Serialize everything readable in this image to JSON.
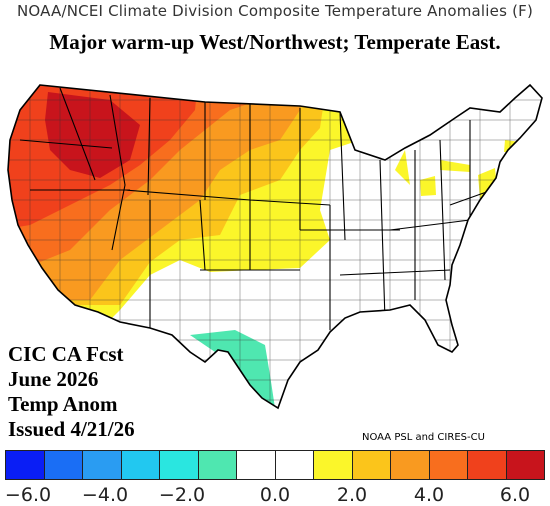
{
  "header": {
    "title": "NOAA/NCEI Climate Division Composite Temperature Anomalies (F)",
    "subtitle": "Major warm-up West/Northwest; Temperate East."
  },
  "forecast_note": {
    "line1": "CIC CA Fcst",
    "line2": "June 2026",
    "line3": "Temp Anom",
    "line4": "Issued 4/21/26"
  },
  "credit": "NOAA PSL and CIRES-CU",
  "colorbar": {
    "colors": [
      "#0a1ef5",
      "#1a6ef5",
      "#2a9cf2",
      "#22c8f0",
      "#2ae6e0",
      "#4fe7b0",
      "#ffffff",
      "#ffffff",
      "#fbf62a",
      "#fbc51b",
      "#f99a20",
      "#f86e1e",
      "#f0411c",
      "#c8141c"
    ],
    "ticks": [
      "−6.0",
      "−4.0",
      "−2.0",
      "0.0",
      "2.0",
      "4.0",
      "6.0"
    ]
  },
  "map_legend": {
    "warm_extreme": "#c8141c",
    "warm_high": "#f0411c",
    "warm_mid": "#f99a20",
    "warm_low": "#fbc51b",
    "warm_slight": "#fbf62a",
    "cool_slight": "#4fe7b0",
    "neutral": "#ffffff"
  }
}
